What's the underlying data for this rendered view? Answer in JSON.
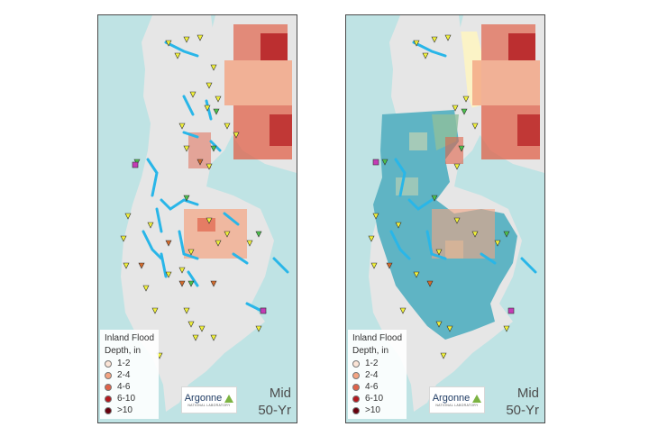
{
  "legend": {
    "title_line1": "Inland Flood",
    "title_line2": "Depth, in",
    "items": [
      {
        "label": "1-2",
        "color": "#fbe4d6"
      },
      {
        "label": "2-4",
        "color": "#f4a482"
      },
      {
        "label": "4-6",
        "color": "#e0624a"
      },
      {
        "label": "6-10",
        "color": "#b3181e"
      },
      {
        "label": ">10",
        "color": "#67000d"
      }
    ]
  },
  "logo": {
    "name": "Argonne",
    "subtitle": "NATIONAL LABORATORY"
  },
  "scenario": {
    "line1": "Mid",
    "line2": "50-Yr"
  },
  "colors": {
    "water": "#bfe3e4",
    "land": "#e6e6e6",
    "stream": "#29b6e8",
    "zone": "#5fb4c4",
    "marker_yellow": "#f2f23a",
    "marker_green": "#4cc24c",
    "marker_orange": "#d36b2c",
    "marker_magenta": "#c43bb5"
  }
}
